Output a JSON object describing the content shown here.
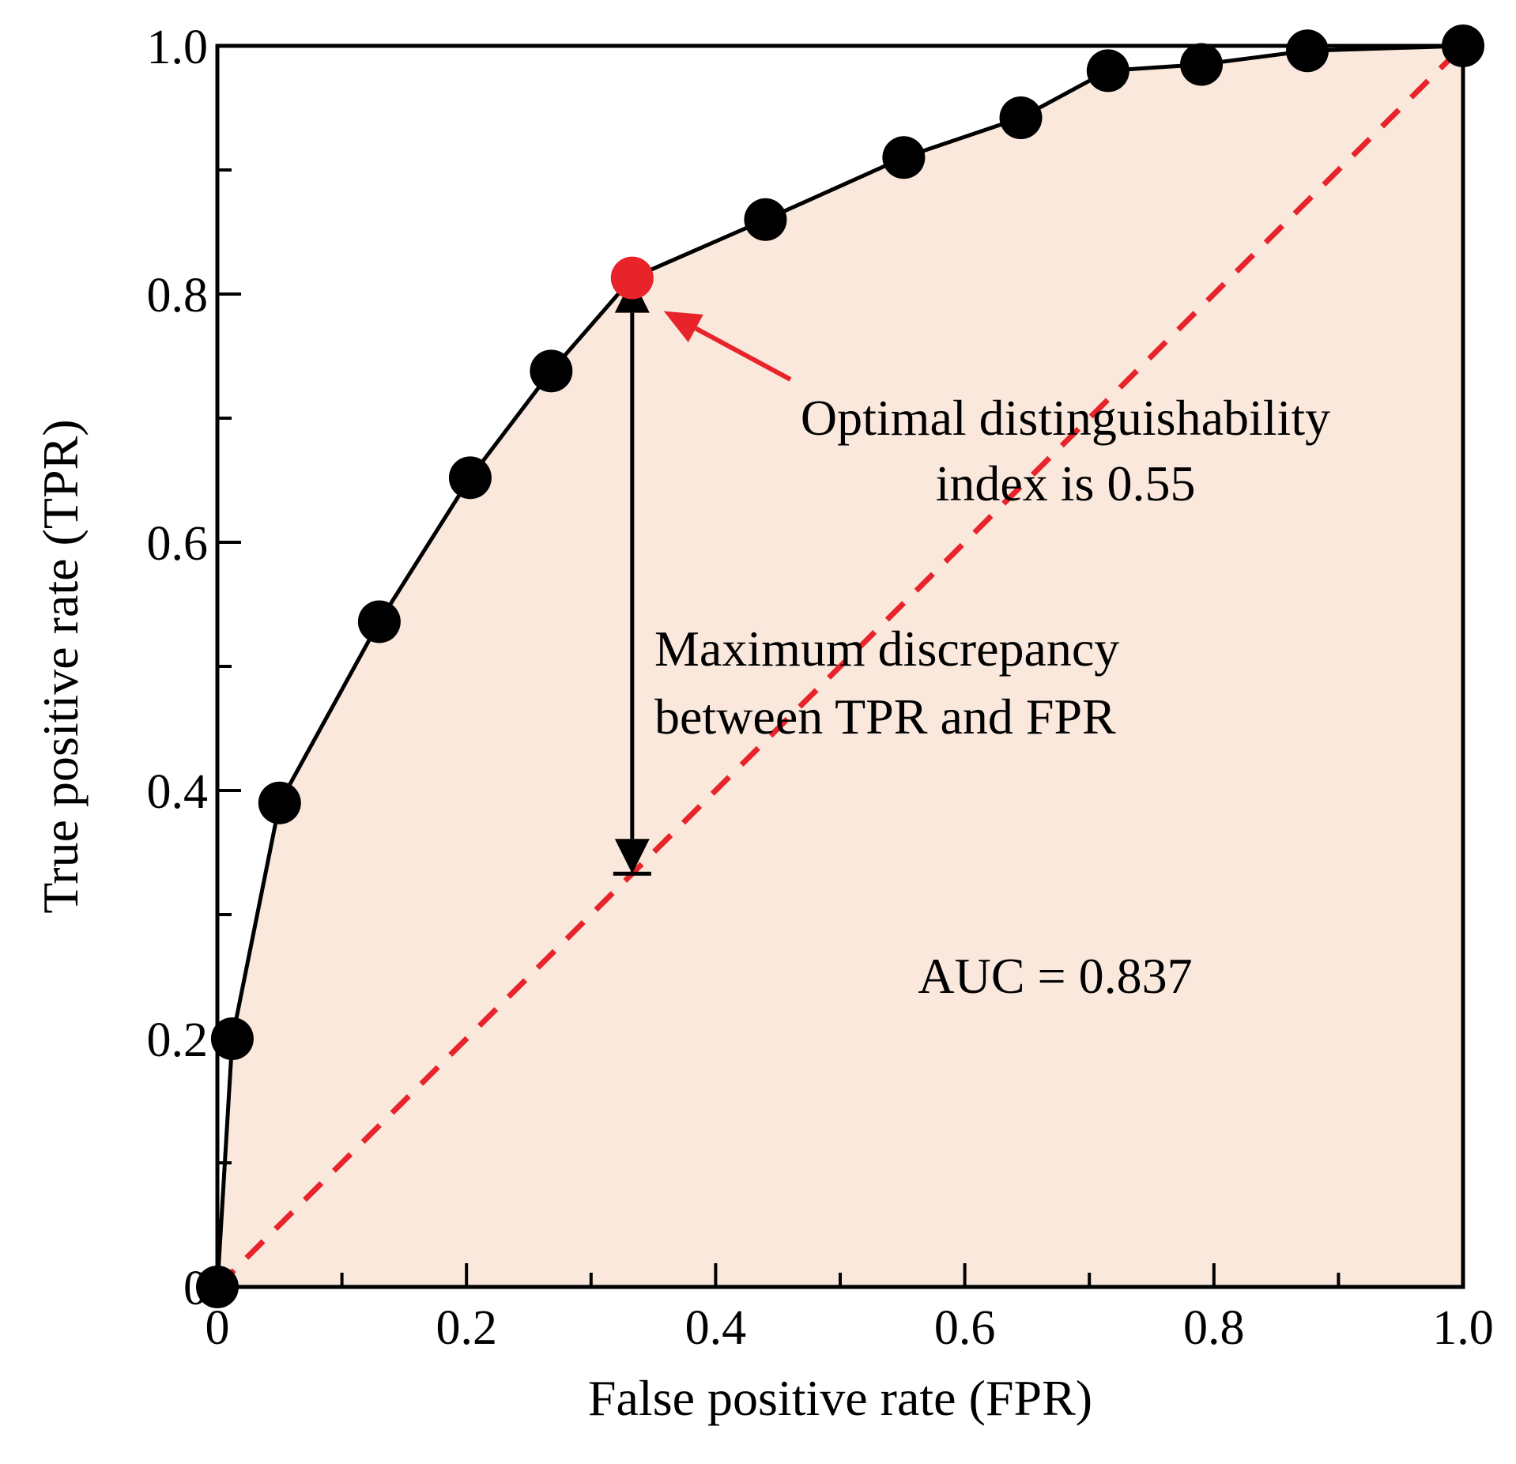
{
  "chart_data": {
    "type": "line",
    "xlabel": "False positive rate (FPR)",
    "ylabel": "True positive rate (TPR)",
    "xlim": [
      0,
      1
    ],
    "ylim": [
      0,
      1
    ],
    "x_ticks": [
      "0",
      "0.2",
      "0.4",
      "0.6",
      "0.8",
      "1.0"
    ],
    "y_ticks": [
      "0",
      "0.2",
      "0.4",
      "0.6",
      "0.8",
      "1.0"
    ],
    "grid": false,
    "series": [
      {
        "x": [
          0,
          0.012,
          0.05,
          0.13,
          0.203,
          0.268,
          0.333,
          0.44,
          0.551,
          0.645,
          0.715,
          0.79,
          0.875,
          1.0
        ],
        "y": [
          0,
          0.2,
          0.39,
          0.536,
          0.652,
          0.738,
          0.813,
          0.86,
          0.91,
          0.942,
          0.98,
          0.985,
          0.996,
          1.0
        ],
        "color": "#000000",
        "marker": "circle",
        "fill": "#fae8dc"
      }
    ],
    "reference_line": {
      "x": [
        0,
        1
      ],
      "y": [
        0,
        1
      ],
      "color": "#e8232a",
      "style": "dashed"
    },
    "optimal_point": {
      "x": 0.333,
      "y": 0.813,
      "color": "#e8232a"
    },
    "discrepancy_arrow": {
      "x": 0.333,
      "y_from": 0.333,
      "y_to": 0.813
    },
    "annotations": {
      "optimal_line1": "Optimal distinguishability",
      "optimal_line2": "index is 0.55",
      "discrepancy_line1": "Maximum discrepancy",
      "discrepancy_line2": "between TPR and FPR",
      "auc": "AUC = 0.837"
    }
  }
}
